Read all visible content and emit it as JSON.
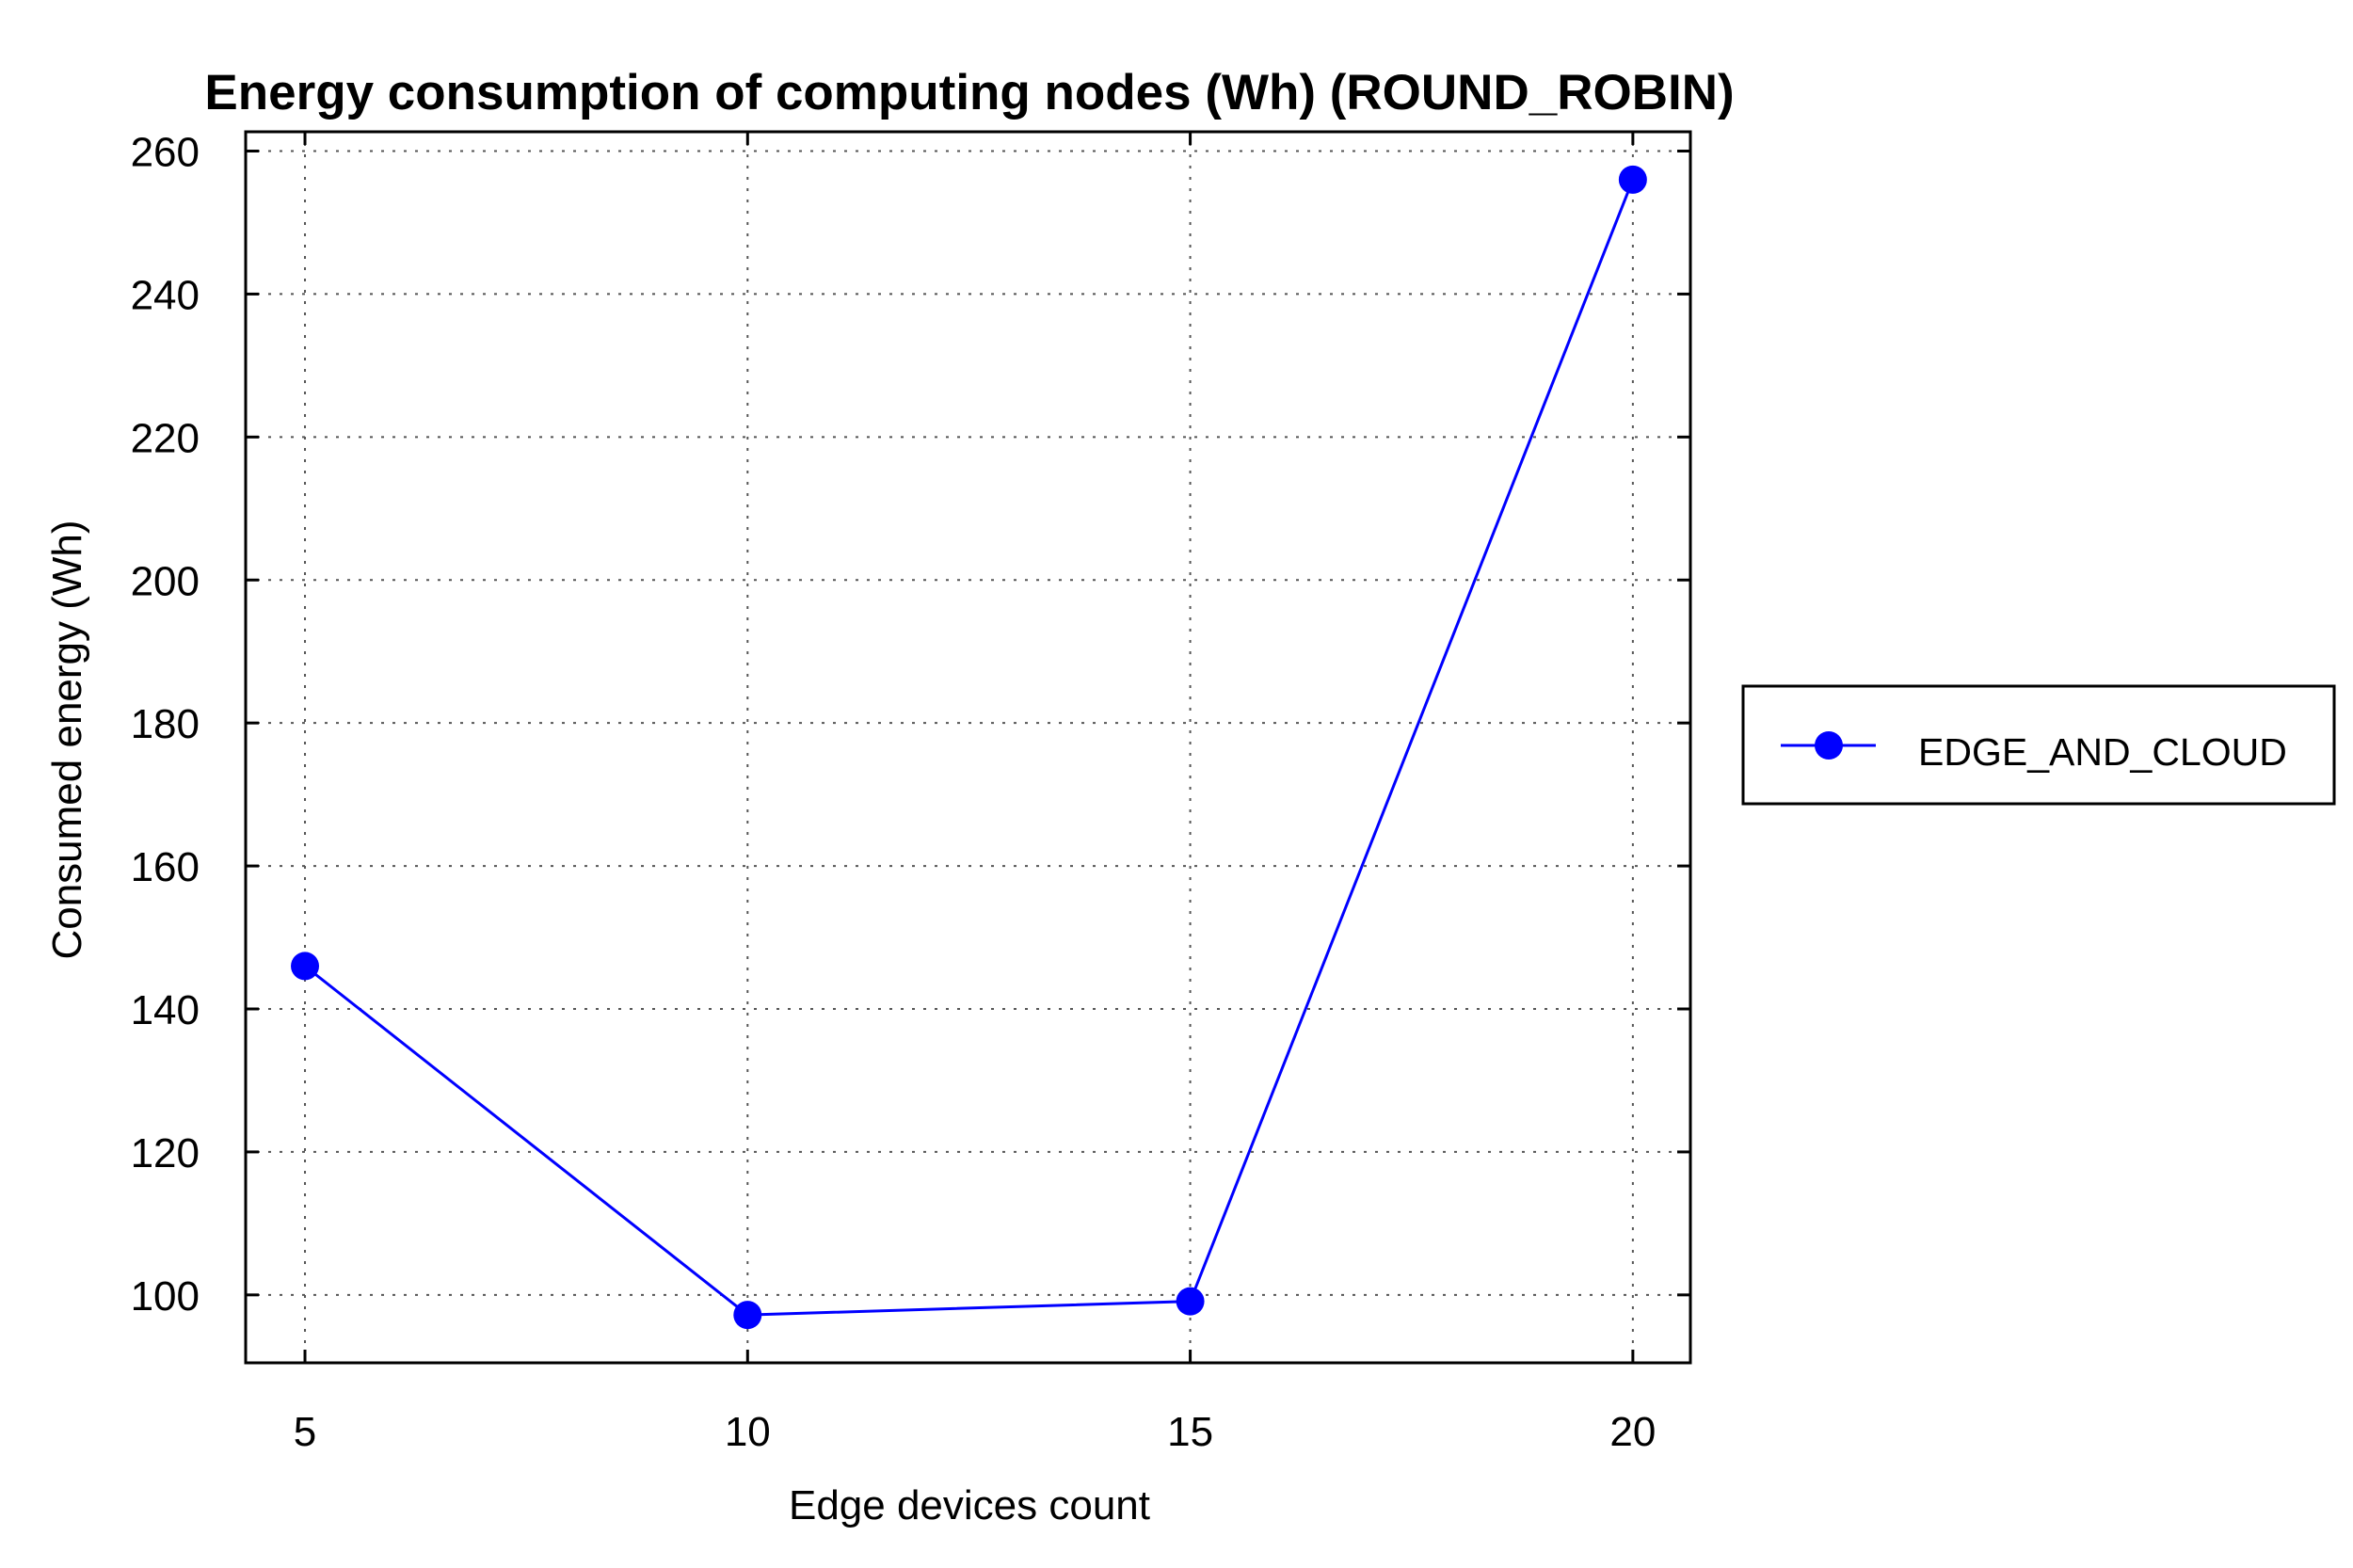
{
  "chart_data": {
    "type": "line",
    "title": "Energy consumption of computing nodes (Wh) (ROUND_ROBIN)",
    "xlabel": "Edge devices count",
    "ylabel": "Consumed energy (Wh)",
    "x": [
      5,
      10,
      15,
      20
    ],
    "x_ticks": [
      "5",
      "10",
      "15",
      "20"
    ],
    "y_ticks": [
      "100",
      "120",
      "140",
      "160",
      "180",
      "200",
      "220",
      "240",
      "260"
    ],
    "xlim": [
      4.33,
      20.65
    ],
    "ylim": [
      90.5,
      262.7
    ],
    "grid": true,
    "legend_position": "right",
    "series": [
      {
        "name": "EDGE_AND_CLOUD",
        "color": "#0000ff",
        "marker": "circle",
        "values": [
          146,
          97.2,
          99.1,
          256
        ]
      }
    ]
  }
}
